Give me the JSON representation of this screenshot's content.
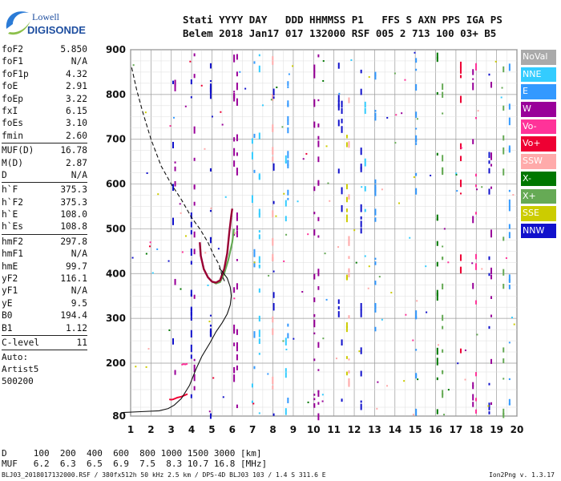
{
  "logo": {
    "line1": "Lowell",
    "line2": "DIGISONDE"
  },
  "header": {
    "row1": "Stati YYYY DAY   DDD HHMMSS P1   FFS S AXN PPS IGA PS",
    "row2": "Belem 2018 Jan17 017 132000 RSF 005 2 713 100 03+ B5"
  },
  "params": {
    "group1": [
      {
        "name": "foF2",
        "value": "5.850"
      },
      {
        "name": "foF1",
        "value": "N/A"
      },
      {
        "name": "foF1p",
        "value": "4.32"
      },
      {
        "name": "foE",
        "value": "2.91"
      },
      {
        "name": "foEp",
        "value": "3.22"
      },
      {
        "name": "fxI",
        "value": "6.15"
      },
      {
        "name": "foEs",
        "value": "3.10"
      },
      {
        "name": "fmin",
        "value": "2.60"
      }
    ],
    "group2": [
      {
        "name": "MUF(D)",
        "value": "16.78"
      },
      {
        "name": "M(D)",
        "value": "2.87"
      },
      {
        "name": "D",
        "value": "N/A"
      }
    ],
    "group3": [
      {
        "name": "h`F",
        "value": "375.3"
      },
      {
        "name": "h`F2",
        "value": "375.3"
      },
      {
        "name": "h`E",
        "value": "108.0"
      },
      {
        "name": "h`Es",
        "value": "108.8"
      }
    ],
    "group4": [
      {
        "name": "hmF2",
        "value": "297.8"
      },
      {
        "name": "hmF1",
        "value": "N/A"
      },
      {
        "name": "hmE",
        "value": "99.7"
      },
      {
        "name": "yF2",
        "value": "116.1"
      },
      {
        "name": "yF1",
        "value": "N/A"
      },
      {
        "name": "yE",
        "value": "9.5"
      },
      {
        "name": "B0",
        "value": "194.4"
      },
      {
        "name": "B1",
        "value": "1.12"
      }
    ],
    "group5": [
      {
        "name": "C-level",
        "value": "11"
      }
    ],
    "auto_label": "Auto:",
    "artist": "Artist5",
    "artist_version": "500200"
  },
  "legend": [
    {
      "label": "NoVal",
      "color": "#aaaaaa",
      "text_color": "#ffffff"
    },
    {
      "label": "NNE",
      "color": "#33ccff",
      "text_color": "#ffffff"
    },
    {
      "label": "E",
      "color": "#3399ff",
      "text_color": "#ffffff"
    },
    {
      "label": "W",
      "color": "#990099",
      "text_color": "#ffffff"
    },
    {
      "label": "Vo-",
      "color": "#ff3399",
      "text_color": "#ffffff"
    },
    {
      "label": "Vo+",
      "color": "#ee0033",
      "text_color": "#ffffff"
    },
    {
      "label": "SSW",
      "color": "#ffaaaa",
      "text_color": "#ffffff"
    },
    {
      "label": "X-",
      "color": "#007700",
      "text_color": "#ffffff"
    },
    {
      "label": "X+",
      "color": "#66aa55",
      "text_color": "#ffffff"
    },
    {
      "label": "SSE",
      "color": "#cccc00",
      "text_color": "#ffffff"
    },
    {
      "label": "NNW",
      "color": "#1111cc",
      "text_color": "#ffffff"
    }
  ],
  "footer": {
    "distance_row": "D     100  200  400  600  800 1000 1500 3000 [km]",
    "muf_row": "MUF   6.2  6.3  6.5  6.9  7.5  8.3 10.7 16.8 [MHz]",
    "file_info": "BLJ03_2018017132000.RSF / 380fx512h 50 kHz 2.5 km / DPS-4D BLJ03 103 / 1.4 S 311.6 E",
    "version": "Ion2Png v. 1.3.17"
  },
  "chart_data": {
    "type": "scatter",
    "xlim": [
      1,
      20
    ],
    "ylim": [
      80,
      900
    ],
    "x_ticks": [
      "1",
      "2",
      "3",
      "4",
      "5",
      "6",
      "7",
      "8",
      "9",
      "10",
      "11",
      "12",
      "13",
      "14",
      "15",
      "16",
      "17",
      "18",
      "19",
      "20"
    ],
    "y_ticks": [
      "80",
      "200",
      "300",
      "400",
      "500",
      "600",
      "700",
      "800",
      "900"
    ],
    "grid": true,
    "profile_dashed": [
      [
        1.05,
        860
      ],
      [
        1.3,
        810
      ],
      [
        1.6,
        760
      ],
      [
        2,
        700
      ],
      [
        2.5,
        640
      ],
      [
        3,
        600
      ],
      [
        3.5,
        565
      ],
      [
        4,
        525
      ],
      [
        4.4,
        500
      ],
      [
        4.8,
        470
      ],
      [
        5.1,
        440
      ],
      [
        5.35,
        420
      ],
      [
        5.5,
        395
      ],
      [
        5.65,
        380
      ]
    ],
    "profile_solid": [
      [
        0.6,
        88
      ],
      [
        1.5,
        90
      ],
      [
        2.4,
        92
      ],
      [
        2.85,
        97
      ],
      [
        3.15,
        105
      ],
      [
        3.5,
        120
      ],
      [
        3.9,
        150
      ],
      [
        4.2,
        185
      ],
      [
        4.5,
        215
      ],
      [
        4.9,
        245
      ],
      [
        5.2,
        270
      ],
      [
        5.5,
        290
      ],
      [
        5.75,
        310
      ],
      [
        5.9,
        330
      ],
      [
        5.95,
        350
      ],
      [
        5.9,
        370
      ],
      [
        5.75,
        390
      ],
      [
        5.5,
        405
      ],
      [
        5.35,
        412
      ]
    ],
    "trace_f_ordinary": [
      [
        4.4,
        470
      ],
      [
        4.45,
        440
      ],
      [
        4.6,
        410
      ],
      [
        4.8,
        392
      ],
      [
        5.0,
        382
      ],
      [
        5.2,
        380
      ],
      [
        5.4,
        385
      ],
      [
        5.6,
        410
      ],
      [
        5.75,
        445
      ],
      [
        5.85,
        490
      ],
      [
        5.95,
        530
      ],
      [
        6.0,
        545
      ]
    ],
    "trace_f_extra": [
      [
        5.0,
        382
      ],
      [
        5.2,
        378
      ],
      [
        5.4,
        381
      ],
      [
        5.6,
        400
      ],
      [
        5.8,
        430
      ],
      [
        6.0,
        470
      ],
      [
        6.08,
        500
      ]
    ],
    "trace_e_layer": [
      [
        2.9,
        118
      ],
      [
        3.0,
        117
      ],
      [
        3.1,
        118
      ],
      [
        3.2,
        120
      ],
      [
        3.3,
        122
      ],
      [
        3.5,
        124
      ],
      [
        3.7,
        128
      ],
      [
        3.8,
        130
      ]
    ],
    "trace_es": [
      [
        3.5,
        196
      ],
      [
        3.6,
        198
      ],
      [
        3.7,
        197
      ],
      [
        3.8,
        199
      ]
    ],
    "vertical_noise_columns": [
      {
        "x": 3.05,
        "series": "NNW"
      },
      {
        "x": 3.15,
        "series": "W"
      },
      {
        "x": 3.95,
        "series": "NNW"
      },
      {
        "x": 4.1,
        "series": "W"
      },
      {
        "x": 4.9,
        "series": "NNW"
      },
      {
        "x": 6.05,
        "series": "W"
      },
      {
        "x": 6.2,
        "series": "W"
      },
      {
        "x": 6.95,
        "series": "NNE"
      },
      {
        "x": 7.05,
        "series": "E"
      },
      {
        "x": 7.3,
        "series": "NNE"
      },
      {
        "x": 7.95,
        "series": "SSW"
      },
      {
        "x": 8.0,
        "series": "NNW"
      },
      {
        "x": 8.6,
        "series": "NNE"
      },
      {
        "x": 8.7,
        "series": "E"
      },
      {
        "x": 10.0,
        "series": "W"
      },
      {
        "x": 10.2,
        "series": "W"
      },
      {
        "x": 11.2,
        "series": "NNW"
      },
      {
        "x": 11.35,
        "series": "NNW"
      },
      {
        "x": 11.6,
        "series": "SSE"
      },
      {
        "x": 11.7,
        "series": "SSW"
      },
      {
        "x": 12.3,
        "series": "NNW"
      },
      {
        "x": 12.5,
        "series": "NNE"
      },
      {
        "x": 13.0,
        "series": "E"
      },
      {
        "x": 15.0,
        "series": "E"
      },
      {
        "x": 16.05,
        "series": "X-"
      },
      {
        "x": 16.3,
        "series": "X+"
      },
      {
        "x": 17.2,
        "series": "Vo+"
      },
      {
        "x": 17.8,
        "series": "W"
      },
      {
        "x": 17.95,
        "series": "Vo-"
      },
      {
        "x": 18.6,
        "series": "NNW"
      },
      {
        "x": 18.7,
        "series": "W"
      },
      {
        "x": 19.3,
        "series": "X+"
      },
      {
        "x": 19.6,
        "series": "E"
      }
    ]
  }
}
